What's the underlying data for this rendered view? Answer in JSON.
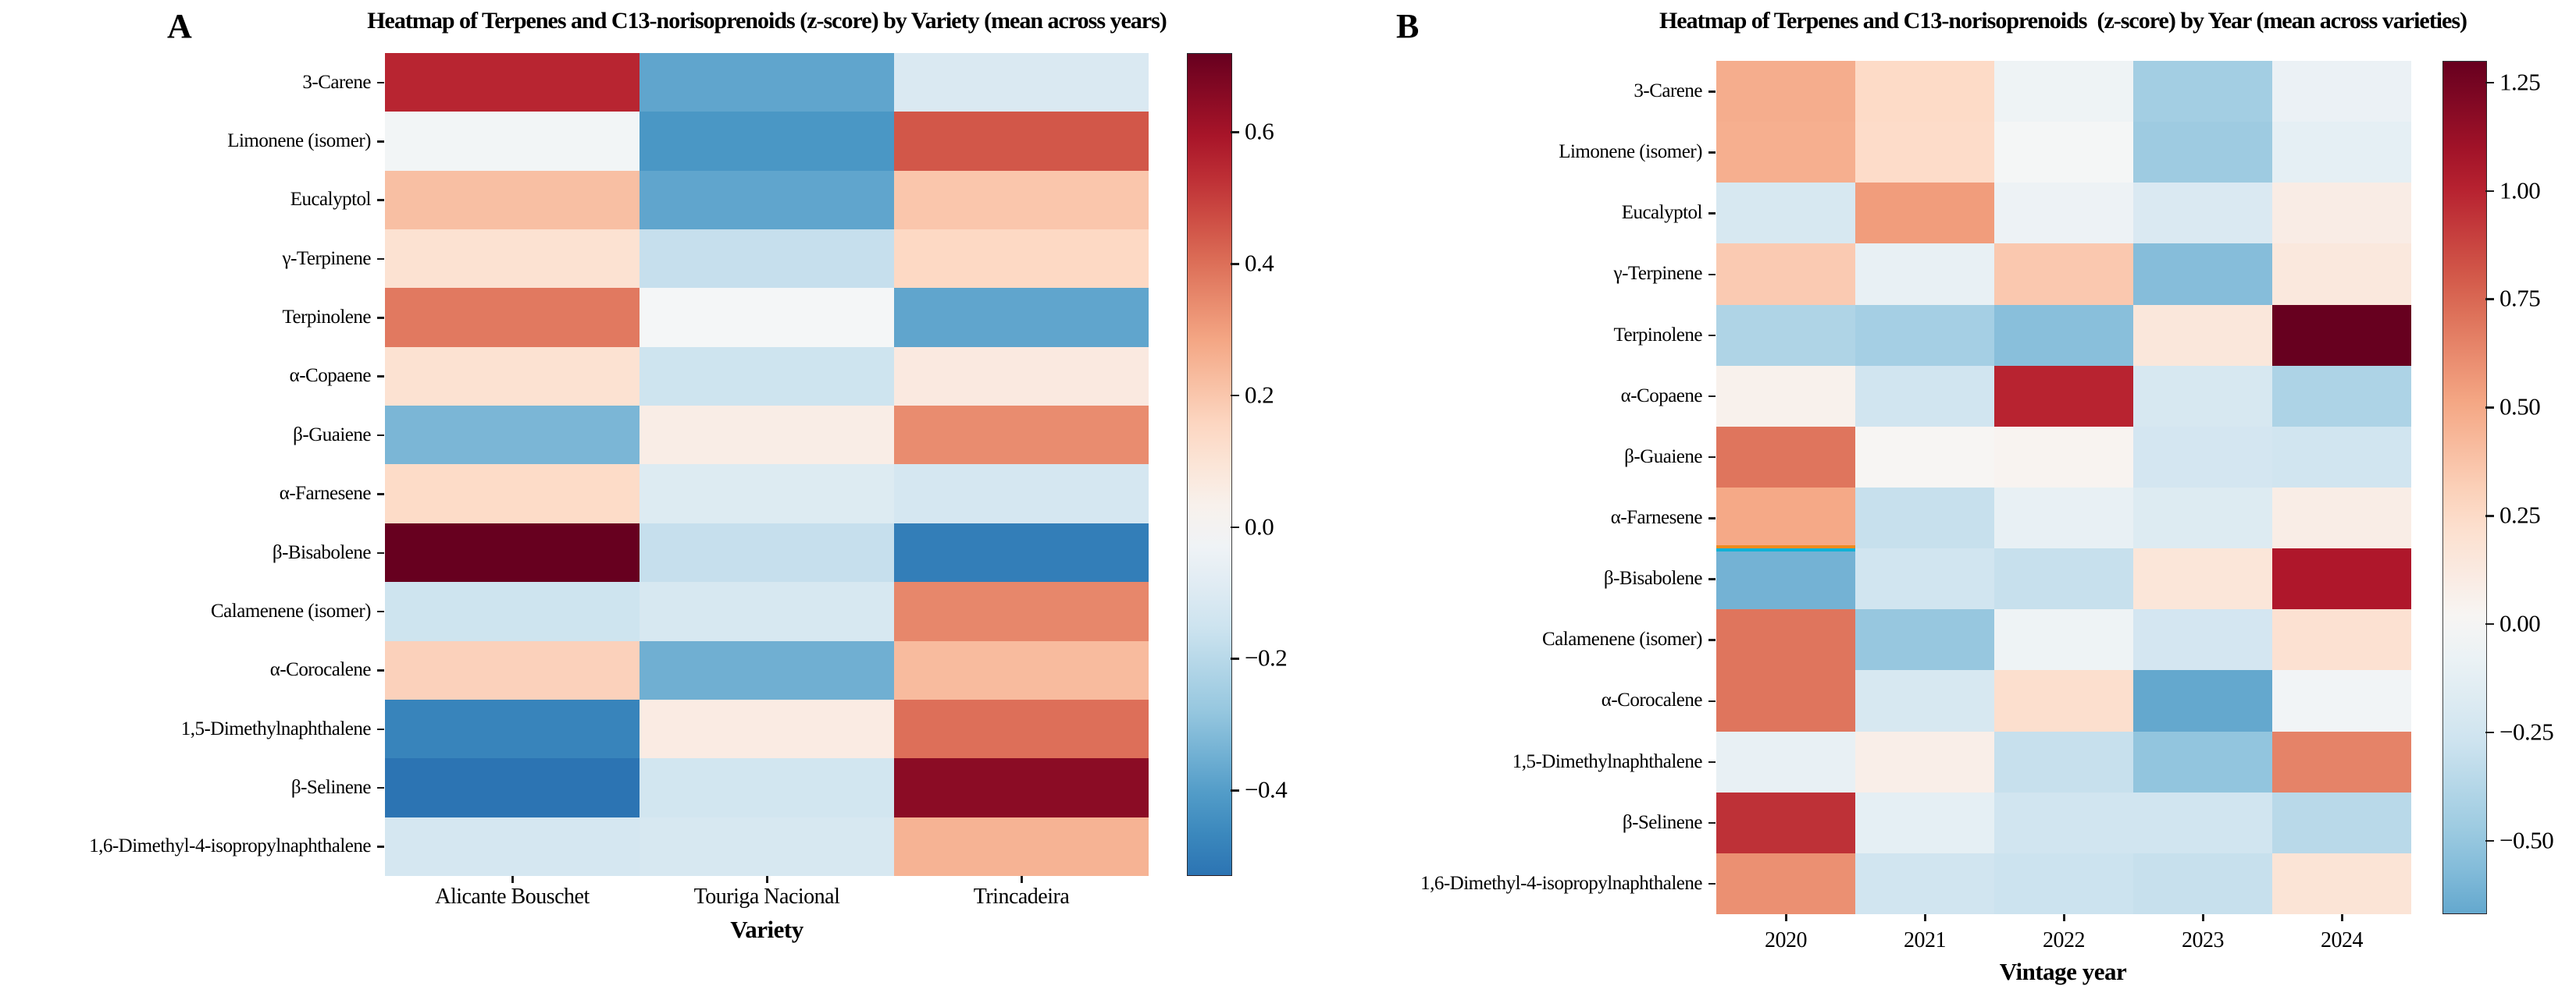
{
  "figure": {
    "background": "#ffffff",
    "artifact_stripe": {
      "top_color": "#ee8b1f",
      "bottom_color": "#10b2d8"
    }
  },
  "panels": [
    {
      "corner_label": "A",
      "title": "Heatmap of Terpenes and C13-norisoprenoids (z-score) by Variety (mean across years)",
      "xlabel": "Variety"
    },
    {
      "corner_label": "B",
      "title": "Heatmap of Terpenes and C13-norisoprenoids  (z-score) by Year (mean across varieties)",
      "xlabel": "Vintage year"
    }
  ],
  "chart_data": [
    {
      "type": "heatmap",
      "panel": "A",
      "title": "Heatmap of Terpenes and C13-norisoprenoids (z-score) by Variety (mean across years)",
      "xlabel": "Variety",
      "ylabel": "",
      "colormap": "RdBu_r",
      "center": 0,
      "vmin": -0.53,
      "vmax": 0.72,
      "legend_position": "right-colorbar",
      "grid": false,
      "x_categories": [
        "Alicante Bouschet",
        "Touriga Nacional",
        "Trincadeira"
      ],
      "y_categories": [
        "3-Carene",
        "Limonene (isomer)",
        "Eucalyptol",
        "γ-Terpinene",
        "Terpinolene",
        "α-Copaene",
        "β-Guaiene",
        "α-Farnesene",
        "β-Bisabolene",
        "Calamenene (isomer)",
        "α-Corocalene",
        "1,5-Dimethylnaphthalene",
        "β-Selinene",
        "1,6-Dimethyl-4-isopropylnaphthalene"
      ],
      "values": [
        [
          0.55,
          -0.38,
          -0.11
        ],
        [
          -0.02,
          -0.42,
          0.45
        ],
        [
          0.22,
          -0.38,
          0.2
        ],
        [
          0.11,
          -0.17,
          0.15
        ],
        [
          0.38,
          -0.01,
          -0.38
        ],
        [
          0.11,
          -0.15,
          0.07
        ],
        [
          -0.33,
          0.05,
          0.34
        ],
        [
          0.14,
          -0.1,
          -0.13
        ],
        [
          0.72,
          -0.17,
          -0.5
        ],
        [
          -0.15,
          -0.12,
          0.35
        ],
        [
          0.17,
          -0.35,
          0.23
        ],
        [
          -0.48,
          0.06,
          0.4
        ],
        [
          -0.53,
          -0.14,
          0.65
        ],
        [
          -0.13,
          -0.12,
          0.25
        ]
      ],
      "colorbar_ticks": [
        0.6,
        0.4,
        0.2,
        0.0,
        -0.2,
        -0.4
      ],
      "colorbar_tick_labels": [
        "0.6",
        "0.4",
        "0.2",
        "0.0",
        "−0.2",
        "−0.4"
      ]
    },
    {
      "type": "heatmap",
      "panel": "B",
      "title": "Heatmap of Terpenes and C13-norisoprenoids  (z-score) by Year (mean across varieties)",
      "xlabel": "Vintage year",
      "ylabel": "",
      "colormap": "RdBu_r",
      "center": 0,
      "vmin": -0.67,
      "vmax": 1.3,
      "legend_position": "right-colorbar",
      "grid": false,
      "x_categories": [
        "2020",
        "2021",
        "2022",
        "2023",
        "2024"
      ],
      "y_categories": [
        "3-Carene",
        "Limonene (isomer)",
        "Eucalyptol",
        "γ-Terpinene",
        "Terpinolene",
        "α-Copaene",
        "β-Guaiene",
        "α-Farnesene",
        "β-Bisabolene",
        "Calamenene (isomer)",
        "α-Corocalene",
        "1,5-Dimethylnaphthalene",
        "β-Selinene",
        "1,6-Dimethyl-4-isopropylnaphthalene"
      ],
      "values": [
        [
          0.48,
          0.26,
          -0.06,
          -0.45,
          -0.08
        ],
        [
          0.47,
          0.25,
          -0.02,
          -0.47,
          -0.12
        ],
        [
          -0.22,
          0.55,
          -0.07,
          -0.2,
          0.1
        ],
        [
          0.34,
          -0.1,
          0.35,
          -0.56,
          0.14
        ],
        [
          -0.4,
          -0.44,
          -0.55,
          0.15,
          1.3
        ],
        [
          0.06,
          -0.26,
          1.0,
          -0.22,
          -0.41
        ],
        [
          0.7,
          0.02,
          0.04,
          -0.24,
          -0.26
        ],
        [
          0.5,
          -0.3,
          -0.1,
          -0.18,
          0.09
        ],
        [
          -0.62,
          -0.26,
          -0.3,
          0.16,
          1.05
        ],
        [
          0.7,
          -0.5,
          -0.06,
          -0.24,
          0.2
        ],
        [
          0.7,
          -0.22,
          0.22,
          -0.67,
          -0.04
        ],
        [
          -0.1,
          0.08,
          -0.3,
          -0.52,
          0.65
        ],
        [
          0.95,
          -0.12,
          -0.26,
          -0.26,
          -0.36
        ],
        [
          0.6,
          -0.26,
          -0.28,
          -0.3,
          0.18
        ]
      ],
      "colorbar_ticks": [
        1.25,
        1.0,
        0.75,
        0.5,
        0.25,
        0.0,
        -0.25,
        -0.5
      ],
      "colorbar_tick_labels": [
        "1.25",
        "1.00",
        "0.75",
        "0.50",
        "0.25",
        "0.00",
        "−0.25",
        "−0.50"
      ]
    }
  ]
}
